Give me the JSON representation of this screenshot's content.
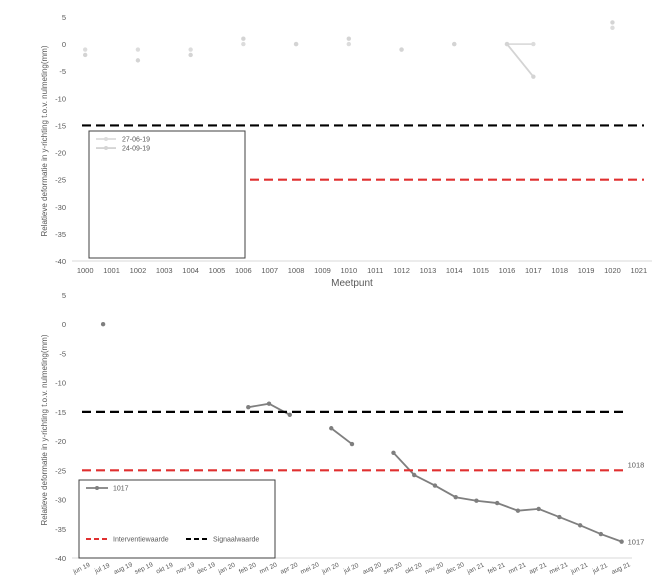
{
  "chart_data": [
    {
      "type": "line",
      "xlabel": "Meetpunt",
      "ylabel": "Relatieve deformatie in y-richting t.o.v. nulmeting(mm)",
      "ylim": [
        -40,
        5
      ],
      "yticks": [
        5,
        0,
        -5,
        -10,
        -15,
        -20,
        -25,
        -30,
        -35,
        -40
      ],
      "categories": [
        "1000",
        "1001",
        "1002",
        "1003",
        "1004",
        "1005",
        "1006",
        "1007",
        "1008",
        "1009",
        "1010",
        "1011",
        "1012",
        "1013",
        "1014",
        "1015",
        "1016",
        "1017",
        "1018",
        "1019",
        "1020",
        "1021"
      ],
      "series": [
        {
          "name": "27-06-19",
          "color": "#dcdcdc",
          "values": [
            -1,
            null,
            -1,
            null,
            -1,
            null,
            0,
            null,
            0,
            null,
            0,
            null,
            -1,
            null,
            0,
            null,
            0,
            0,
            null,
            null,
            3,
            null
          ]
        },
        {
          "name": "24-09-19",
          "color": "#d4d4d4",
          "values": [
            -2,
            null,
            -3,
            null,
            -2,
            null,
            1,
            null,
            0,
            null,
            1,
            null,
            -1,
            null,
            0,
            null,
            0,
            -6,
            null,
            null,
            4,
            null
          ]
        }
      ],
      "reference_lines": [
        {
          "value": -15,
          "color": "#000000",
          "style": "dashed"
        },
        {
          "value": -25,
          "color": "#e03030",
          "style": "dashed"
        }
      ],
      "legend": "bottom-left"
    },
    {
      "type": "line",
      "xlabel": "",
      "ylabel": "Relatieve deformatie in y-richting t.o.v. nulmeting(mm)",
      "ylim": [
        -40,
        5
      ],
      "yticks": [
        5,
        0,
        -5,
        -10,
        -15,
        -20,
        -25,
        -30,
        -35,
        -40
      ],
      "categories": [
        "jun 19",
        "jul 19",
        "aug 19",
        "sep 19",
        "okt 19",
        "nov 19",
        "dec 19",
        "jan 20",
        "feb 20",
        "mrt 20",
        "apr 20",
        "mei 20",
        "jun 20",
        "jul 20",
        "aug 20",
        "sep 20",
        "okt 20",
        "nov 20",
        "dec 20",
        "jan 21",
        "feb 21",
        "mrt 21",
        "apr 21",
        "mei 21",
        "jun 21",
        "jul 21",
        "aug 21"
      ],
      "series": [
        {
          "name": "1017",
          "color": "#7f7f7f",
          "values": [
            null,
            0,
            null,
            null,
            null,
            null,
            null,
            null,
            -14.2,
            -13.6,
            -15.5,
            null,
            -17.8,
            -20.5,
            null,
            -22,
            -25.8,
            -27.6,
            -29.6,
            -30.2,
            -30.6,
            -31.9,
            -31.6,
            -33,
            -34.4,
            -35.9,
            -37.2
          ]
        }
      ],
      "end_labels": [
        "1018",
        "1017"
      ],
      "reference_lines": [
        {
          "name": "Interventiewaarde",
          "value": -25,
          "color": "#e03030",
          "style": "dashed"
        },
        {
          "name": "Signaalwaarde",
          "value": -15,
          "color": "#000000",
          "style": "dashed"
        }
      ],
      "legend": "bottom-left"
    }
  ]
}
